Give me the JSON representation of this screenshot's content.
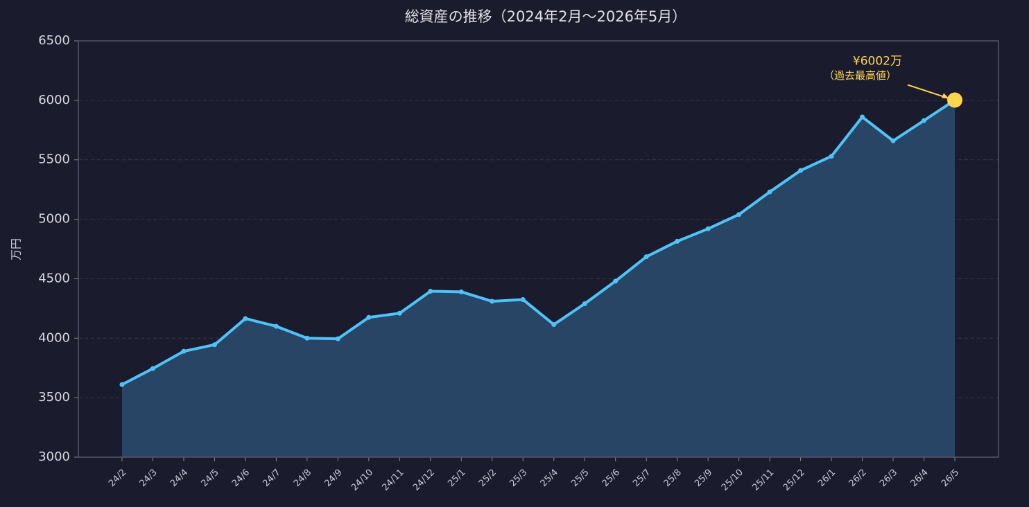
{
  "chart_data": {
    "type": "line",
    "title": "総資産の推移（2024年2月〜2026年5月）",
    "y_label": "万円",
    "categories": [
      "24/2",
      "24/3",
      "24/4",
      "24/5",
      "24/6",
      "24/7",
      "24/8",
      "24/9",
      "24/10",
      "24/11",
      "24/12",
      "25/1",
      "25/2",
      "25/3",
      "25/4",
      "25/5",
      "25/6",
      "25/7",
      "25/8",
      "25/9",
      "25/10",
      "25/11",
      "25/12",
      "26/1",
      "26/2",
      "26/3",
      "26/4",
      "26/5"
    ],
    "series": [
      {
        "name": "総資産",
        "color": "#4fc3f7",
        "values": [
          3610,
          3745,
          3890,
          3945,
          4165,
          4100,
          4000,
          3995,
          4175,
          4210,
          4395,
          4390,
          4310,
          4325,
          4115,
          4290,
          4480,
          4685,
          4815,
          4920,
          5040,
          5230,
          5410,
          5530,
          5860,
          5660,
          5830,
          6002
        ]
      }
    ],
    "ylim": [
      3000,
      6500
    ],
    "yticks": [
      3000,
      3500,
      4000,
      4500,
      5000,
      5500,
      6000,
      6500
    ],
    "grid": true,
    "area_color": "#2a4a6b",
    "highlight_color": "#ffd54f",
    "annotation": {
      "value": "¥6002万",
      "note": "（過去最高値）"
    }
  }
}
